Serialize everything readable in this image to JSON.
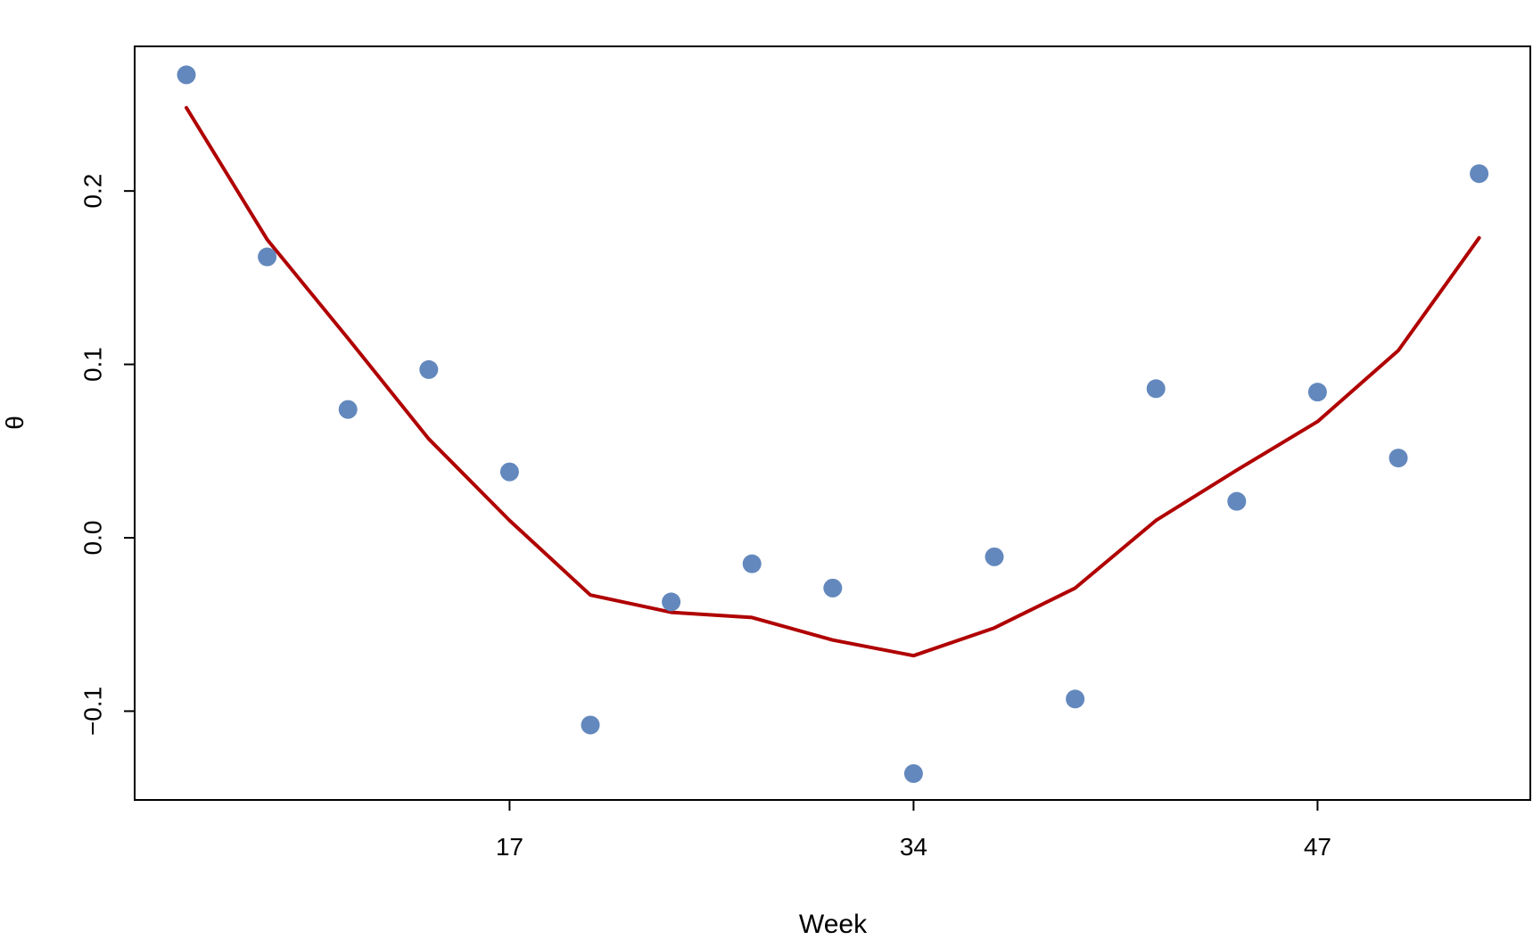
{
  "chart_data": {
    "type": "scatter",
    "title": "",
    "xlabel": "Week",
    "ylabel": "θ",
    "xlim": [
      1,
      55
    ],
    "ylim": [
      -0.152,
      0.285
    ],
    "x_ticks": [
      {
        "value": 17,
        "label": "17"
      },
      {
        "value": 34,
        "label": "34"
      },
      {
        "value": 47,
        "label": "47"
      }
    ],
    "y_ticks": [
      {
        "value": -0.1,
        "label": "−0.1"
      },
      {
        "value": 0.0,
        "label": "0.0"
      },
      {
        "value": 0.1,
        "label": "0.1"
      },
      {
        "value": 0.2,
        "label": "0.2"
      }
    ],
    "grid": false,
    "series": [
      {
        "kind": "points",
        "color": "#6388BD",
        "points": [
          {
            "x": 1,
            "y": 0.267
          },
          {
            "x": 2,
            "y": 0.162
          },
          {
            "x": 3,
            "y": 0.074
          },
          {
            "x": 4,
            "y": 0.097
          },
          {
            "x": 17,
            "y": 0.038
          },
          {
            "x": 18,
            "y": -0.108
          },
          {
            "x": 19,
            "y": -0.037
          },
          {
            "x": 20,
            "y": -0.015
          },
          {
            "x": 21,
            "y": -0.029
          },
          {
            "x": 34,
            "y": -0.136
          },
          {
            "x": 35,
            "y": -0.011
          },
          {
            "x": 36,
            "y": -0.093
          },
          {
            "x": 37,
            "y": 0.086
          },
          {
            "x": 38,
            "y": 0.021
          },
          {
            "x": 47,
            "y": 0.084
          },
          {
            "x": 48,
            "y": 0.046
          },
          {
            "x": 49,
            "y": 0.21
          }
        ]
      },
      {
        "kind": "line",
        "color": "#B00000",
        "points": [
          {
            "x": 1,
            "y": 0.248
          },
          {
            "x": 2,
            "y": 0.172
          },
          {
            "x": 3,
            "y": 0.115
          },
          {
            "x": 4,
            "y": 0.057
          },
          {
            "x": 17,
            "y": 0.01
          },
          {
            "x": 18,
            "y": -0.033
          },
          {
            "x": 19,
            "y": -0.043
          },
          {
            "x": 20,
            "y": -0.046
          },
          {
            "x": 21,
            "y": -0.059
          },
          {
            "x": 34,
            "y": -0.068
          },
          {
            "x": 35,
            "y": -0.052
          },
          {
            "x": 36,
            "y": -0.029
          },
          {
            "x": 37,
            "y": 0.01
          },
          {
            "x": 38,
            "y": 0.039
          },
          {
            "x": 47,
            "y": 0.067
          },
          {
            "x": 48,
            "y": 0.108
          },
          {
            "x": 49,
            "y": 0.173
          }
        ]
      }
    ]
  }
}
